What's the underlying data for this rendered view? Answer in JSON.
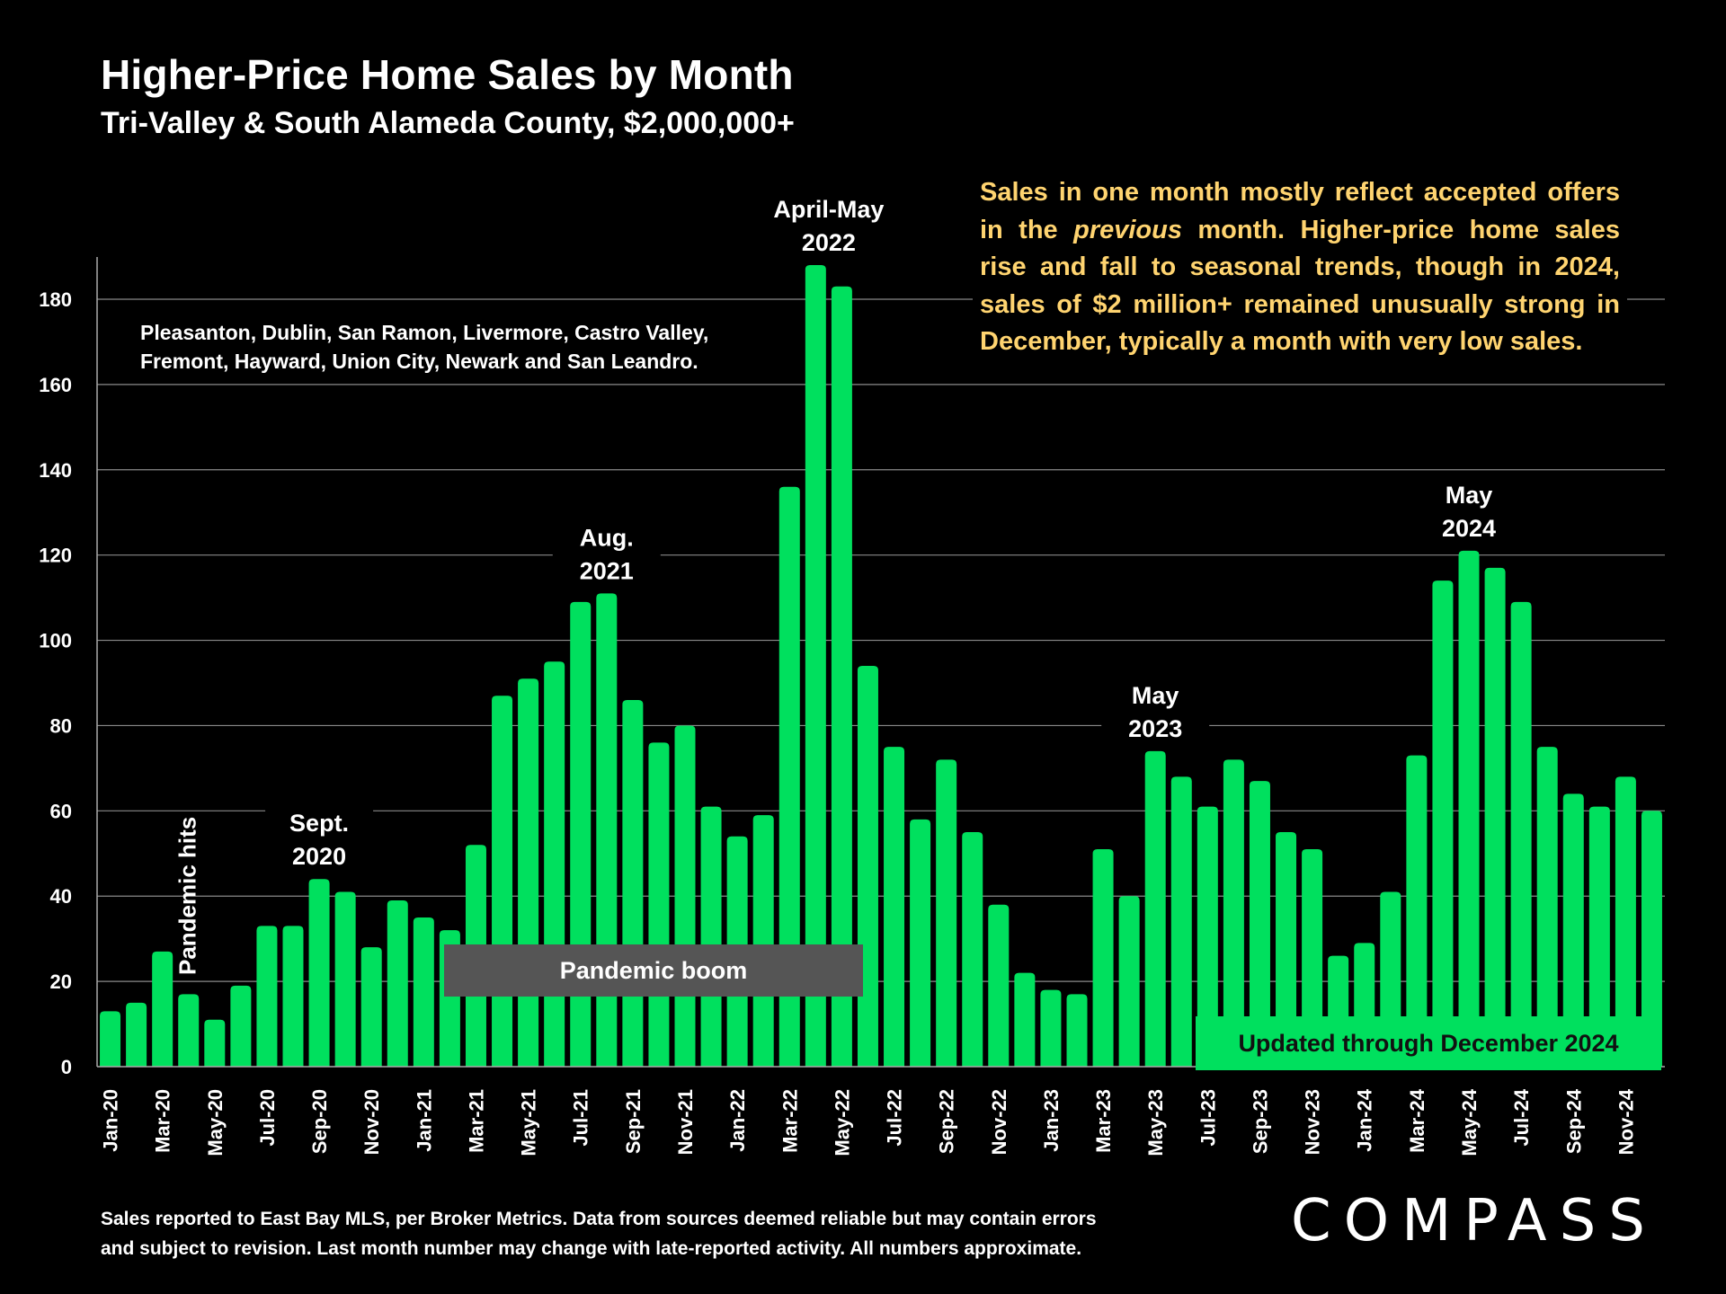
{
  "title": "Higher-Price Home Sales by Month",
  "subtitle": "Tri-Valley & South Alameda County, $2,000,000+",
  "cities_line1": "Pleasanton, Dublin, San Ramon, Livermore, Castro Valley,",
  "cities_line2": "Fremont, Hayward, Union City, Newark and San Leandro.",
  "note": {
    "part1": "Sales in one month mostly reflect accepted offers in the ",
    "emph": "previous",
    "part2": " month. Higher-price home sales rise and fall to seasonal trends, though in 2024, sales of $2 million+ remained unusually strong in December, typically a month with very low sales."
  },
  "boom_label": "Pandemic boom",
  "updated_label": "Updated through December 2024",
  "footer_line1": "Sales reported to East Bay MLS, per Broker Metrics. Data from sources deemed reliable but may contain errors",
  "footer_line2": "and subject to revision. Last month number may change with late-reported activity. All numbers approximate.",
  "logo_text": "COMPASS",
  "colors": {
    "bar": "#00e05e",
    "note": "#ffd470",
    "background": "#000000",
    "boom_box": "#555555"
  },
  "chart_data": {
    "type": "bar",
    "categories": [
      "Jan-20",
      "Feb-20",
      "Mar-20",
      "Apr-20",
      "May-20",
      "Jun-20",
      "Jul-20",
      "Aug-20",
      "Sep-20",
      "Oct-20",
      "Nov-20",
      "Dec-20",
      "Jan-21",
      "Feb-21",
      "Mar-21",
      "Apr-21",
      "May-21",
      "Jun-21",
      "Jul-21",
      "Aug-21",
      "Sep-21",
      "Oct-21",
      "Nov-21",
      "Dec-21",
      "Jan-22",
      "Feb-22",
      "Mar-22",
      "Apr-22",
      "May-22",
      "Jun-22",
      "Jul-22",
      "Aug-22",
      "Sep-22",
      "Oct-22",
      "Nov-22",
      "Dec-22",
      "Jan-23",
      "Feb-23",
      "Mar-23",
      "Apr-23",
      "May-23",
      "Jun-23",
      "Jul-23",
      "Aug-23",
      "Sep-23",
      "Oct-23",
      "Nov-23",
      "Dec-23",
      "Jan-24",
      "Feb-24",
      "Mar-24",
      "Apr-24",
      "May-24",
      "Jun-24",
      "Jul-24",
      "Aug-24",
      "Sep-24",
      "Oct-24",
      "Nov-24",
      "Dec-24"
    ],
    "values": [
      13,
      15,
      27,
      17,
      11,
      19,
      33,
      33,
      44,
      41,
      28,
      39,
      35,
      32,
      52,
      87,
      91,
      95,
      109,
      111,
      86,
      76,
      80,
      61,
      54,
      59,
      136,
      188,
      183,
      94,
      75,
      58,
      72,
      55,
      38,
      22,
      18,
      17,
      51,
      40,
      74,
      68,
      61,
      72,
      67,
      55,
      51,
      26,
      29,
      41,
      73,
      114,
      121,
      117,
      109,
      75,
      64,
      61,
      68,
      60
    ],
    "tick_labels": [
      "Jan-20",
      "Mar-20",
      "May-20",
      "Jul-20",
      "Sep-20",
      "Nov-20",
      "Jan-21",
      "Mar-21",
      "May-21",
      "Jul-21",
      "Sep-21",
      "Nov-21",
      "Jan-22",
      "Mar-22",
      "May-22",
      "Jul-22",
      "Sep-22",
      "Nov-22",
      "Jan-23",
      "Mar-23",
      "May-23",
      "Jul-23",
      "Sep-23",
      "Nov-23",
      "Jan-24",
      "Mar-24",
      "May-24",
      "Jul-24",
      "Sep-24",
      "Nov-24"
    ],
    "yticks": [
      0,
      20,
      40,
      60,
      80,
      100,
      120,
      140,
      160,
      180
    ],
    "ylim": [
      0,
      190
    ],
    "grid": true,
    "annotations": [
      {
        "index": 3,
        "lines": [
          "Pandemic hits"
        ],
        "rotated": true
      },
      {
        "index": 8,
        "lines": [
          "Sept.",
          "2020"
        ]
      },
      {
        "index": 19,
        "lines": [
          "Aug.",
          "2021"
        ]
      },
      {
        "index": 27.5,
        "lines": [
          "April-May",
          "2022"
        ]
      },
      {
        "index": 40,
        "lines": [
          "May",
          "2023"
        ]
      },
      {
        "index": 52,
        "lines": [
          "May",
          "2024"
        ]
      }
    ]
  }
}
